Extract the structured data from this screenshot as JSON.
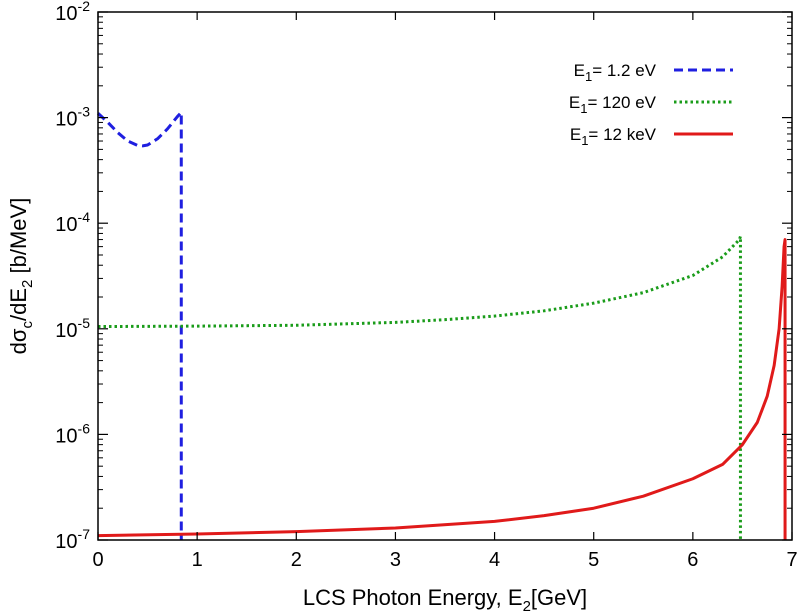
{
  "chart_data": {
    "type": "line",
    "title": "",
    "xlabel": {
      "text": "LCS Photon Energy, E",
      "sub": "2",
      "tail": "[GeV]"
    },
    "ylabel": {
      "p1": "dσ",
      "sub1": "c",
      "p2": "/dE",
      "sub2": "2",
      "p3": " [b/MeV]"
    },
    "xlim": [
      0,
      7
    ],
    "ylim": [
      1e-07,
      0.01
    ],
    "yscale": "log",
    "grid": false,
    "legend_position": "top-right",
    "x_ticks": [
      {
        "value": 0,
        "label": "0"
      },
      {
        "value": 1,
        "label": "1"
      },
      {
        "value": 2,
        "label": "2"
      },
      {
        "value": 3,
        "label": "3"
      },
      {
        "value": 4,
        "label": "4"
      },
      {
        "value": 5,
        "label": "5"
      },
      {
        "value": 6,
        "label": "6"
      },
      {
        "value": 7,
        "label": "7"
      }
    ],
    "y_ticks": [
      {
        "value": 1e-07,
        "base": "10",
        "exp": "-7"
      },
      {
        "value": 1e-06,
        "base": "10",
        "exp": "-6"
      },
      {
        "value": 1e-05,
        "base": "10",
        "exp": "-5"
      },
      {
        "value": 0.0001,
        "base": "10",
        "exp": "-4"
      },
      {
        "value": 0.001,
        "base": "10",
        "exp": "-3"
      },
      {
        "value": 0.01,
        "base": "10",
        "exp": "-2"
      }
    ],
    "series": [
      {
        "name": "E1= 1.2 eV",
        "legend": {
          "p1": "E",
          "sub": "1",
          "p2": "= 1.2 eV"
        },
        "color": "#1f1fe0",
        "dash": "dashed",
        "x": [
          0,
          0.1,
          0.2,
          0.3,
          0.4,
          0.45,
          0.5,
          0.6,
          0.7,
          0.8,
          0.84,
          0.84
        ],
        "y": [
          0.0011,
          0.0009,
          0.00072,
          0.0006,
          0.000545,
          0.00054,
          0.00055,
          0.00063,
          0.00078,
          0.00102,
          0.00112,
          1e-07
        ]
      },
      {
        "name": "E1= 120 eV",
        "legend": {
          "p1": "E",
          "sub": "1",
          "p2": "= 120 eV"
        },
        "color": "#1a9c1a",
        "dash": "dotted",
        "x": [
          0,
          1,
          2,
          3,
          3.5,
          4,
          4.5,
          5,
          5.5,
          6,
          6.3,
          6.47,
          6.48,
          6.48
        ],
        "y": [
          1.05e-05,
          1.06e-05,
          1.08e-05,
          1.15e-05,
          1.22e-05,
          1.32e-05,
          1.48e-05,
          1.75e-05,
          2.2e-05,
          3.2e-05,
          4.8e-05,
          7e-05,
          7.5e-05,
          1e-07
        ]
      },
      {
        "name": "E1= 12 keV",
        "legend": {
          "p1": "E",
          "sub": "1",
          "p2": "= 12 keV"
        },
        "color": "#e01a1a",
        "dash": "solid",
        "x": [
          0,
          1,
          2,
          3,
          4,
          4.5,
          5,
          5.5,
          6,
          6.3,
          6.5,
          6.65,
          6.75,
          6.82,
          6.87,
          6.9,
          6.92,
          6.93,
          6.93
        ],
        "y": [
          1.1e-07,
          1.14e-07,
          1.2e-07,
          1.3e-07,
          1.5e-07,
          1.7e-07,
          2e-07,
          2.6e-07,
          3.8e-07,
          5.2e-07,
          8e-07,
          1.3e-06,
          2.3e-06,
          4.5e-06,
          1e-05,
          2.5e-05,
          6e-05,
          7e-05,
          1e-07
        ]
      }
    ]
  }
}
